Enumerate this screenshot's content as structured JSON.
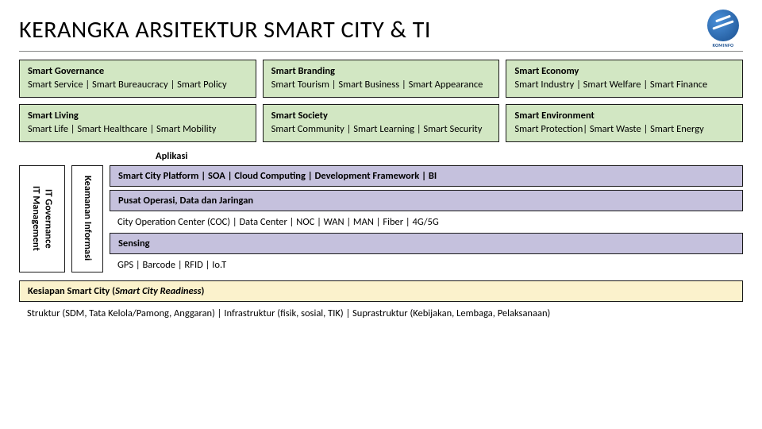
{
  "colors": {
    "green_fill": "#d2e7c3",
    "purple_fill": "#c5c1dd",
    "yellow_fill": "#fbf2cc",
    "border": "#1a1a1a",
    "logo_primary": "#1a4f8f"
  },
  "header": {
    "title": "KERANGKA ARSITEKTUR SMART CITY & TI",
    "logo_label": "KOMINFO"
  },
  "top_grid": [
    {
      "title": "Smart Governance",
      "items": "Smart Service | Smart Bureaucracy | Smart Policy"
    },
    {
      "title": "Smart Branding",
      "items": "Smart Tourism | Smart Business | Smart Appearance"
    },
    {
      "title": "Smart Economy",
      "items": "Smart Industry | Smart Welfare | Smart Finance"
    },
    {
      "title": "Smart Living",
      "items": "Smart Life | Smart Healthcare | Smart Mobility"
    },
    {
      "title": "Smart Society",
      "items": "Smart Community | Smart Learning | Smart Security"
    },
    {
      "title": "Smart Environment",
      "items": "Smart Protection| Smart Waste | Smart Energy"
    }
  ],
  "mid": {
    "aplikasi_label": "Aplikasi",
    "vcol1_line1": "IT Governance",
    "vcol1_line2": "IT Management",
    "vcol2_line1": "Keamanan Informasi",
    "stack": [
      {
        "type": "purple",
        "text": "Smart City Platform | SOA | Cloud Computing | Development Framework | BI"
      },
      {
        "type": "purple",
        "text": "Pusat Operasi, Data dan Jaringan"
      },
      {
        "type": "plain",
        "text": "City Operation Center (COC) | Data Center | NOC | WAN | MAN | Fiber | 4G/5G"
      },
      {
        "type": "purple",
        "text": "Sensing"
      },
      {
        "type": "plain",
        "text": "GPS | Barcode | RFID | Io.T"
      }
    ]
  },
  "readiness": {
    "title_prefix": "Kesiapan Smart City (",
    "title_italic": "Smart City Readiness",
    "title_suffix": ")",
    "detail": "Struktur (SDM, Tata Kelola/Pamong, Anggaran) | Infrastruktur (fisik, sosial, TIK) | Suprastruktur (Kebijakan, Lembaga, Pelaksanaan)"
  }
}
